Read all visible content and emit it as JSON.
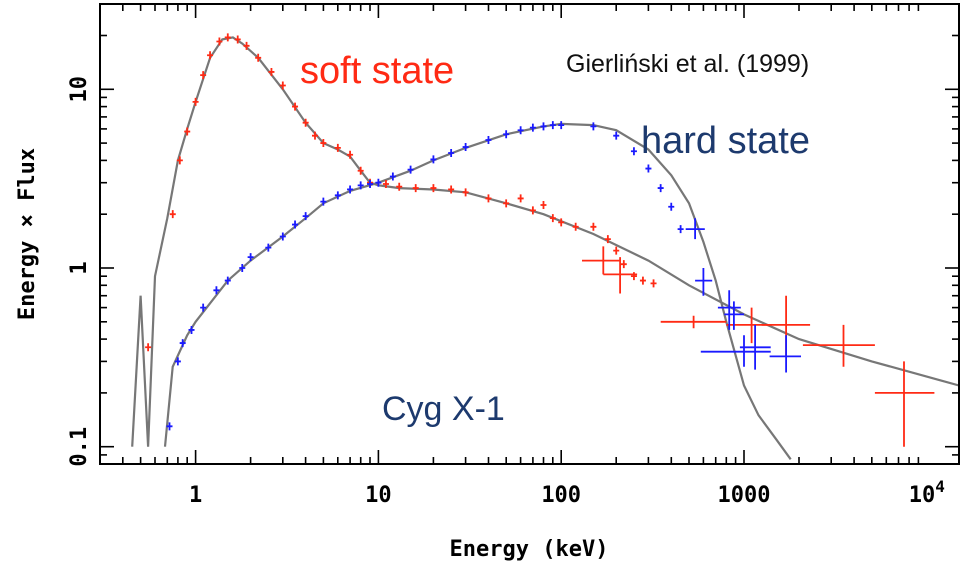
{
  "chart_data": {
    "type": "scatter",
    "xlabel": "Energy (keV)",
    "ylabel": "Energy × Flux",
    "x_scale": "log",
    "y_scale": "log",
    "xlim": [
      0.3,
      15000
    ],
    "ylim": [
      0.08,
      30
    ],
    "x_ticks": [
      {
        "value": 1,
        "label": "1"
      },
      {
        "value": 10,
        "label": "10"
      },
      {
        "value": 100,
        "label": "100"
      },
      {
        "value": 1000,
        "label": "1000"
      }
    ],
    "x_tick_last": {
      "value": 10000,
      "base": "10",
      "exp": "4"
    },
    "y_ticks": [
      {
        "value": 0.1,
        "label": "0.1"
      },
      {
        "value": 1,
        "label": "1"
      },
      {
        "value": 10,
        "label": "10"
      }
    ],
    "annotations": {
      "soft": "soft state",
      "hard": "hard state",
      "citation": "Gierliński et al. (1999)",
      "source": "Cyg X-1"
    },
    "colors": {
      "soft": "#ff2a14",
      "hard": "#1d3a6e",
      "hard_points": "#1a1aff",
      "model": "#777777",
      "frame": "#000000"
    },
    "series": [
      {
        "key": "soft_model",
        "points": [
          [
            0.45,
            0.1
          ],
          [
            0.5,
            0.7
          ],
          [
            0.55,
            0.1
          ],
          [
            0.6,
            0.9
          ],
          [
            0.7,
            1.9
          ],
          [
            0.8,
            4.0
          ],
          [
            0.9,
            6.0
          ],
          [
            1.0,
            8.5
          ],
          [
            1.2,
            15
          ],
          [
            1.4,
            19
          ],
          [
            1.6,
            19.5
          ],
          [
            1.8,
            18
          ],
          [
            2.2,
            15
          ],
          [
            3,
            10
          ],
          [
            4,
            6.5
          ],
          [
            5,
            5.0
          ],
          [
            6,
            4.6
          ],
          [
            7,
            4.2
          ],
          [
            8,
            3.5
          ],
          [
            9,
            3.0
          ],
          [
            10,
            2.9
          ],
          [
            13,
            2.8
          ],
          [
            20,
            2.75
          ],
          [
            30,
            2.65
          ],
          [
            50,
            2.3
          ],
          [
            80,
            2.0
          ],
          [
            150,
            1.55
          ],
          [
            300,
            1.1
          ],
          [
            500,
            0.8
          ],
          [
            1000,
            0.55
          ],
          [
            2000,
            0.4
          ],
          [
            5000,
            0.3
          ],
          [
            15000,
            0.22
          ]
        ]
      },
      {
        "key": "hard_model",
        "points": [
          [
            0.68,
            0.1
          ],
          [
            0.75,
            0.28
          ],
          [
            0.9,
            0.42
          ],
          [
            1.0,
            0.5
          ],
          [
            1.5,
            0.85
          ],
          [
            2,
            1.1
          ],
          [
            3,
            1.5
          ],
          [
            4,
            1.9
          ],
          [
            5,
            2.3
          ],
          [
            7,
            2.7
          ],
          [
            10,
            3.0
          ],
          [
            15,
            3.5
          ],
          [
            20,
            4.0
          ],
          [
            30,
            4.7
          ],
          [
            50,
            5.6
          ],
          [
            80,
            6.2
          ],
          [
            100,
            6.4
          ],
          [
            150,
            6.3
          ],
          [
            200,
            5.9
          ],
          [
            300,
            4.6
          ],
          [
            400,
            3.3
          ],
          [
            500,
            2.3
          ],
          [
            600,
            1.4
          ],
          [
            700,
            0.85
          ],
          [
            800,
            0.5
          ],
          [
            1000,
            0.22
          ],
          [
            1200,
            0.15
          ],
          [
            1500,
            0.11
          ],
          [
            1800,
            0.085
          ]
        ]
      },
      {
        "key": "soft_points",
        "points": [
          [
            0.55,
            0.36
          ],
          [
            0.75,
            2.0
          ],
          [
            0.82,
            4.0
          ],
          [
            0.9,
            5.8
          ],
          [
            1.0,
            8.5
          ],
          [
            1.1,
            12
          ],
          [
            1.2,
            15.5
          ],
          [
            1.35,
            18.5
          ],
          [
            1.5,
            19.5
          ],
          [
            1.7,
            19
          ],
          [
            1.9,
            17.5
          ],
          [
            2.2,
            15
          ],
          [
            2.6,
            12.5
          ],
          [
            3,
            10.5
          ],
          [
            3.5,
            8
          ],
          [
            4,
            6.5
          ],
          [
            4.5,
            5.5
          ],
          [
            5,
            5.0
          ],
          [
            6,
            4.7
          ],
          [
            7,
            4.3
          ],
          [
            8,
            3.5
          ],
          [
            9,
            3.0
          ],
          [
            11,
            2.95
          ],
          [
            13,
            2.85
          ],
          [
            16,
            2.8
          ],
          [
            20,
            2.8
          ],
          [
            25,
            2.75
          ],
          [
            30,
            2.65
          ],
          [
            40,
            2.45
          ],
          [
            50,
            2.3
          ],
          [
            60,
            2.45
          ],
          [
            70,
            2.1
          ],
          [
            80,
            2.25
          ],
          [
            90,
            1.9
          ],
          [
            100,
            1.8
          ],
          [
            120,
            1.7
          ],
          [
            150,
            1.7
          ],
          [
            180,
            1.45
          ],
          [
            200,
            1.25
          ],
          [
            220,
            1.05
          ],
          [
            250,
            0.9
          ],
          [
            280,
            0.85
          ],
          [
            320,
            0.82
          ]
        ]
      },
      {
        "key": "hard_points",
        "points": [
          [
            0.72,
            0.13
          ],
          [
            0.8,
            0.3
          ],
          [
            0.85,
            0.38
          ],
          [
            0.95,
            0.45
          ],
          [
            1.1,
            0.6
          ],
          [
            1.3,
            0.75
          ],
          [
            1.5,
            0.85
          ],
          [
            1.8,
            1.0
          ],
          [
            2,
            1.15
          ],
          [
            2.5,
            1.3
          ],
          [
            3,
            1.5
          ],
          [
            3.5,
            1.75
          ],
          [
            4,
            1.95
          ],
          [
            5,
            2.35
          ],
          [
            6,
            2.55
          ],
          [
            7,
            2.75
          ],
          [
            8,
            2.9
          ],
          [
            9,
            2.95
          ],
          [
            10,
            3.0
          ],
          [
            12,
            3.25
          ],
          [
            15,
            3.55
          ],
          [
            20,
            4.05
          ],
          [
            25,
            4.4
          ],
          [
            30,
            4.75
          ],
          [
            40,
            5.2
          ],
          [
            50,
            5.6
          ],
          [
            60,
            5.9
          ],
          [
            70,
            6.1
          ],
          [
            80,
            6.2
          ],
          [
            90,
            6.3
          ],
          [
            100,
            6.3
          ],
          [
            150,
            6.2
          ],
          [
            200,
            5.5
          ],
          [
            250,
            4.5
          ],
          [
            300,
            3.6
          ],
          [
            350,
            2.8
          ],
          [
            400,
            2.2
          ],
          [
            450,
            1.65
          ]
        ]
      }
    ],
    "error_bars": [
      {
        "key": "soft",
        "x": 530,
        "x_lo": 350,
        "x_hi": 800,
        "y": 0.5,
        "y_lo": 0.46,
        "y_hi": 0.54
      },
      {
        "key": "soft",
        "x": 1100,
        "x_lo": 800,
        "x_hi": 1400,
        "y": 0.48,
        "y_lo": 0.38,
        "y_hi": 0.6
      },
      {
        "key": "soft",
        "x": 1700,
        "x_lo": 1250,
        "x_hi": 2300,
        "y": 0.48,
        "y_lo": 0.32,
        "y_hi": 0.7
      },
      {
        "key": "soft",
        "x": 3500,
        "x_lo": 2100,
        "x_hi": 5200,
        "y": 0.37,
        "y_lo": 0.28,
        "y_hi": 0.48
      },
      {
        "key": "soft",
        "x": 7500,
        "x_lo": 5200,
        "x_hi": 11000,
        "y": 0.2,
        "y_lo": 0.1,
        "y_hi": 0.3
      },
      {
        "key": "soft",
        "x": 170,
        "x_lo": 130,
        "x_hi": 210,
        "y": 1.1,
        "y_lo": 0.92,
        "y_hi": 1.32
      },
      {
        "key": "soft",
        "x": 210,
        "x_lo": 170,
        "x_hi": 260,
        "y": 0.92,
        "y_lo": 0.72,
        "y_hi": 1.15
      },
      {
        "key": "hard",
        "x": 540,
        "x_lo": 480,
        "x_hi": 610,
        "y": 1.65,
        "y_lo": 1.45,
        "y_hi": 1.9
      },
      {
        "key": "hard",
        "x": 600,
        "x_lo": 540,
        "x_hi": 670,
        "y": 0.85,
        "y_lo": 0.7,
        "y_hi": 1.0
      },
      {
        "key": "hard",
        "x": 830,
        "x_lo": 720,
        "x_hi": 960,
        "y": 0.6,
        "y_lo": 0.45,
        "y_hi": 0.75
      },
      {
        "key": "hard",
        "x": 1000,
        "x_lo": 580,
        "x_hi": 1400,
        "y": 0.34,
        "y_lo": 0.28,
        "y_hi": 0.42
      },
      {
        "key": "hard",
        "x": 1150,
        "x_lo": 950,
        "x_hi": 1400,
        "y": 0.36,
        "y_lo": 0.27,
        "y_hi": 0.48
      },
      {
        "key": "hard",
        "x": 1700,
        "x_lo": 1380,
        "x_hi": 2050,
        "y": 0.32,
        "y_lo": 0.26,
        "y_hi": 0.42
      },
      {
        "key": "hard",
        "x": 880,
        "x_lo": 780,
        "x_hi": 1000,
        "y": 0.55,
        "y_lo": 0.45,
        "y_hi": 0.65
      }
    ]
  }
}
